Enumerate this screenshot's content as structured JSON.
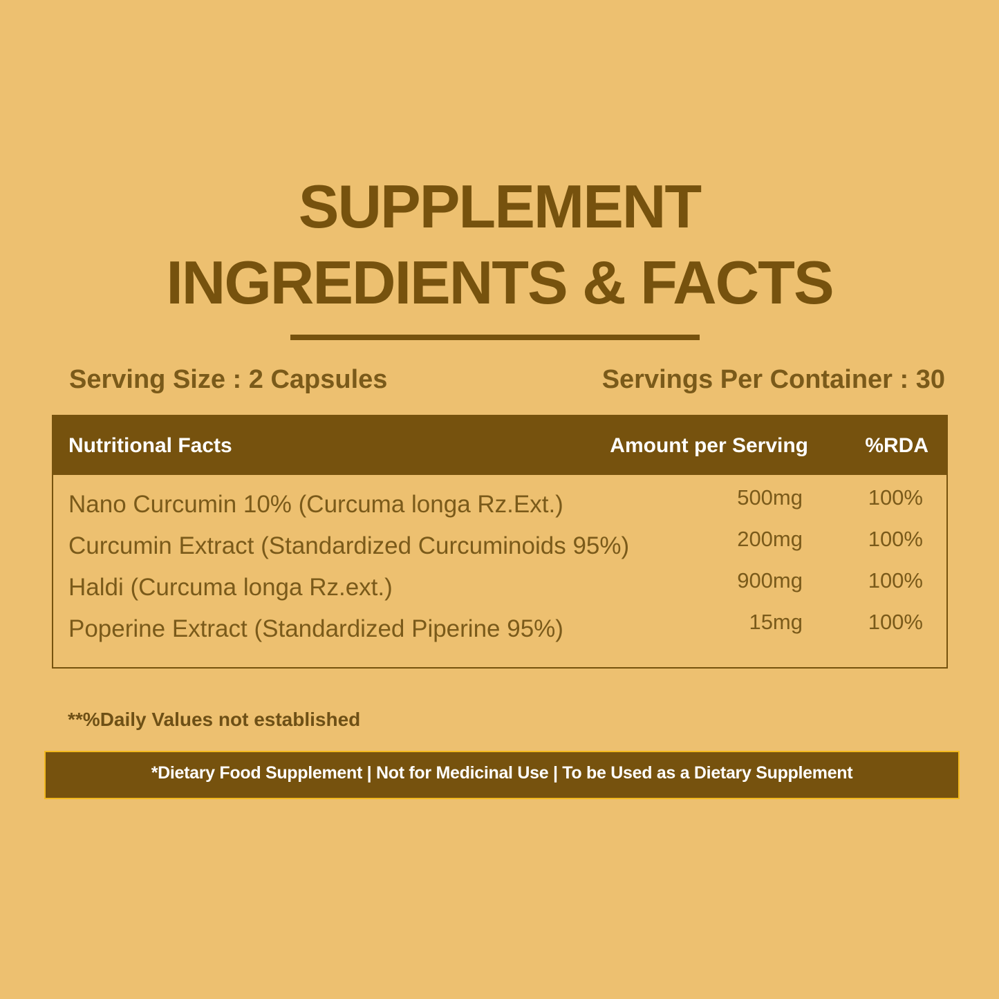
{
  "header": {
    "title": [
      "SUPPLEMENT",
      "INGREDIENTS & FACTS"
    ]
  },
  "serving": {
    "size": "Serving Size : 2 Capsules",
    "per_container": "Servings Per Container : 30"
  },
  "table": {
    "columns": [
      "Nutritional Facts",
      "Amount per Serving",
      "%RDA"
    ],
    "rows": [
      [
        "Nano Curcumin 10% (Curcuma longa Rz.Ext.)",
        "500mg",
        "100%"
      ],
      [
        "Curcumin Extract (Standardized Curcuminoids 95%)",
        "200mg",
        "100%"
      ],
      [
        "Haldi (Curcuma longa Rz.ext.)",
        "900mg",
        "100%"
      ],
      [
        "Poperine Extract (Standardized Piperine 95%)",
        "15mg",
        "100%"
      ]
    ]
  },
  "footnote": "**%Daily Values not established",
  "banner": "*Dietary Food Supplement | Not for Medicinal Use | To be Used as a Dietary Supplement"
}
